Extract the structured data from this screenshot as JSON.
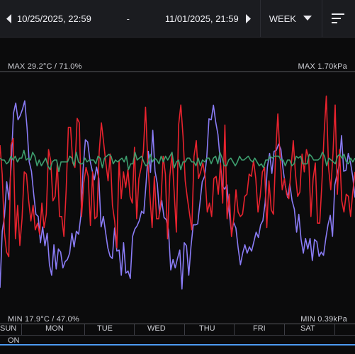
{
  "header": {
    "start_datetime": "10/25/2025, 22:59",
    "range_separator": "-",
    "end_datetime": "11/01/2025, 21:59",
    "period_label": "WEEK"
  },
  "labels": {
    "max_left": "MAX 29.2°C / 71.0%",
    "max_right": "MAX 1.70kPa",
    "min_left": "MIN 17.9°C / 47.0%",
    "min_right": "MIN 0.39kPa"
  },
  "days": [
    "SUN",
    "MON",
    "TUE",
    "WED",
    "THU",
    "FRI",
    "SAT"
  ],
  "status": "ON",
  "colors": {
    "temperature": "#e8232e",
    "humidity": "#8a7cf6",
    "vpd": "#3d9e6e",
    "status_bar": "#4d9bf0"
  },
  "chart_data": {
    "type": "line",
    "series": [
      {
        "values": [
          25.9,
          24.6,
          22.0,
          21.1,
          20.9,
          25.9,
          26.2,
          21.7,
          23.2,
          21.4,
          22.6,
          24.7,
          24.6,
          23.4,
          22.5,
          23.2,
          22.1,
          22.4,
          21.9,
          23.3,
          22.2,
          22.8,
          25.7,
          25.2,
          23.4,
          23.6,
          25.1,
          22.7,
          22.7,
          21.8,
          23.9,
          26.7,
          26.7,
          25.1,
          24.9,
          27.1,
          26.9,
          22.7,
          24.2,
          24.9,
          24.5,
          22.3,
          24.7,
          22.6,
          22.7,
          25.6,
          26.9,
          26.0,
          25.1,
          24.3,
          25.5,
          23.2,
          22.5,
          21.3,
          25.2,
          23.5,
          24.7,
          24.0,
          24.8,
          23.6,
          23.3,
          25.8,
          22.6,
          24.4,
          24.9,
          25.6,
          27.6,
          25.2,
          23.6,
          22.2,
          24.5,
          22.6,
          22.6,
          23.4,
          25.4,
          24.6,
          21.7,
          24.5,
          25.5,
          23.8,
          22.0,
          26.8,
          27.7,
          26.3,
          24.3,
          23.5,
          22.8,
          22.1,
          25.4,
          26.1,
          24.4,
          24.7,
          25.1,
          24.5,
          22.9,
          23.3,
          22.7,
          24.4,
          24.5,
          23.7,
          25.1,
          23.3,
          26.8,
          22.6,
          23.7,
          21.8,
          22.6,
          23.9,
          22.9,
          22.7,
          22.8,
          23.6,
          23.7,
          24.6,
          24.5,
          25.2,
          24.4,
          22.9,
          23.6,
          24.7,
          24.9,
          22.2,
          24.3,
          23.0,
          22.8,
          25.5,
          27.3,
          25.4,
          23.9,
          24.4,
          23.7,
          23.5,
          24.9,
          26.1,
          24.6,
          23.6,
          23.8,
          25.5,
          24.7,
          25.7,
          25.3,
          22.7,
          24.4,
          25.1,
          22.4,
          22.4,
          24.2,
          26.4,
          28.1,
          24.9,
          23.9,
          25.5,
          27.7,
          23.7,
          25.7,
          23.4,
          22.9,
          23.7,
          23.6,
          22.7,
          23.8,
          24.7
        ]
      },
      {
        "values": [
          50.4,
          55.8,
          57.2,
          60.5,
          58.8,
          62.2,
          67.0,
          68.0,
          66.4,
          66.8,
          67.4,
          68.2,
          65.7,
          62.4,
          61.5,
          59.3,
          57.4,
          57.2,
          54.7,
          56.2,
          54.4,
          55.6,
          52.6,
          51.6,
          54.5,
          52.2,
          54.1,
          53.8,
          52.3,
          52.9,
          53.1,
          53.7,
          55.6,
          54.3,
          55.8,
          55.5,
          57.3,
          61.7,
          64.5,
          64.3,
          62.6,
          61.6,
          60.7,
          61.9,
          60.8,
          56.2,
          57.2,
          55.7,
          54.2,
          53.4,
          53.2,
          56.1,
          53.9,
          54.0,
          51.6,
          54.7,
          51.8,
          52.0,
          51.3,
          55.3,
          56.0,
          56.3,
          56.8,
          57.7,
          57.5,
          60.3,
          63.4,
          61.4,
          65.4,
          61.5,
          60.3,
          57.5,
          58.7,
          57.1,
          56.9,
          55.9,
          52.1,
          53.1,
          52.3,
          53.2,
          54.0,
          50.3,
          54.7,
          54.4,
          51.6,
          54.3,
          56.4,
          56.4,
          56.5,
          58.5,
          60.5,
          61.0,
          62.7,
          66.5,
          66.4,
          67.8,
          66.2,
          65.0,
          62.6,
          60.1,
          59.8,
          60.2,
          57.6,
          55.7,
          56.6,
          56.1,
          54.2,
          52.6,
          53.7,
          54.5,
          53.7,
          54.3,
          53.9,
          54.8,
          55.7,
          55.2,
          56.4,
          56.8,
          58.5,
          61.9,
          63.2,
          61.3,
          63.4,
          63.5,
          64.1,
          63.6,
          61.7,
          60.1,
          59.0,
          60.3,
          58.7,
          57.9,
          55.7,
          57.4,
          55.0,
          53.7,
          55.1,
          54.1,
          55.1,
          53.0,
          55.0,
          54.8,
          53.4,
          53.8,
          53.5,
          55.1,
          56.4,
          57.3,
          55.3,
          60.2,
          61.2,
          62.1,
          64.9,
          61.5,
          61.6,
          63.2,
          62.3,
          61.0,
          59.0
        ]
      },
      {
        "values": [
          1.25,
          1.24,
          1.24,
          1.22,
          1.23,
          1.26,
          1.24,
          1.26,
          1.23,
          1.25,
          1.25,
          1.29,
          1.24,
          1.25,
          1.24,
          1.28,
          1.26,
          1.21,
          1.24,
          1.21,
          1.23,
          1.25,
          1.21,
          1.19,
          1.23,
          1.24,
          1.24,
          1.18,
          1.23,
          1.23,
          1.23,
          1.23,
          1.26,
          1.25,
          1.21,
          1.28,
          1.23,
          1.22,
          1.22,
          1.25,
          1.23,
          1.24,
          1.24,
          1.24,
          1.22,
          1.26,
          1.25,
          1.2,
          1.25,
          1.26,
          1.27,
          1.26,
          1.22,
          1.24,
          1.23,
          1.24,
          1.25,
          1.23,
          1.26,
          1.19,
          1.22,
          1.22,
          1.28,
          1.24,
          1.25,
          1.26,
          1.23,
          1.21,
          1.22,
          1.27,
          1.23,
          1.25,
          1.24,
          1.22,
          1.26,
          1.23,
          1.26,
          1.24,
          1.26,
          1.28,
          1.2,
          1.23,
          1.24,
          1.19,
          1.23,
          1.23,
          1.25,
          1.25,
          1.23,
          1.23,
          1.21,
          1.25,
          1.21,
          1.24,
          1.23,
          1.25,
          1.25,
          1.22,
          1.25,
          1.26,
          1.22,
          1.28,
          1.25,
          1.21,
          1.21,
          1.24,
          1.25,
          1.23,
          1.21,
          1.23,
          1.26,
          1.24,
          1.24,
          1.25,
          1.26,
          1.24,
          1.23,
          1.25,
          1.23,
          1.21,
          1.22,
          1.2,
          1.24,
          1.24,
          1.26,
          1.25,
          1.26,
          1.26,
          1.26,
          1.24,
          1.24,
          1.21,
          1.24,
          1.24,
          1.21,
          1.22,
          1.26,
          1.25,
          1.26,
          1.22,
          1.22,
          1.22,
          1.27,
          1.26,
          1.24,
          1.24,
          1.24,
          1.25,
          1.28,
          1.26,
          1.21,
          1.25,
          1.24,
          1.23,
          1.22,
          1.26,
          1.27,
          1.25,
          1.27,
          1.23,
          1.22,
          1.25,
          1.23,
          1.25
        ]
      }
    ],
    "grid": false,
    "legend": "none"
  }
}
